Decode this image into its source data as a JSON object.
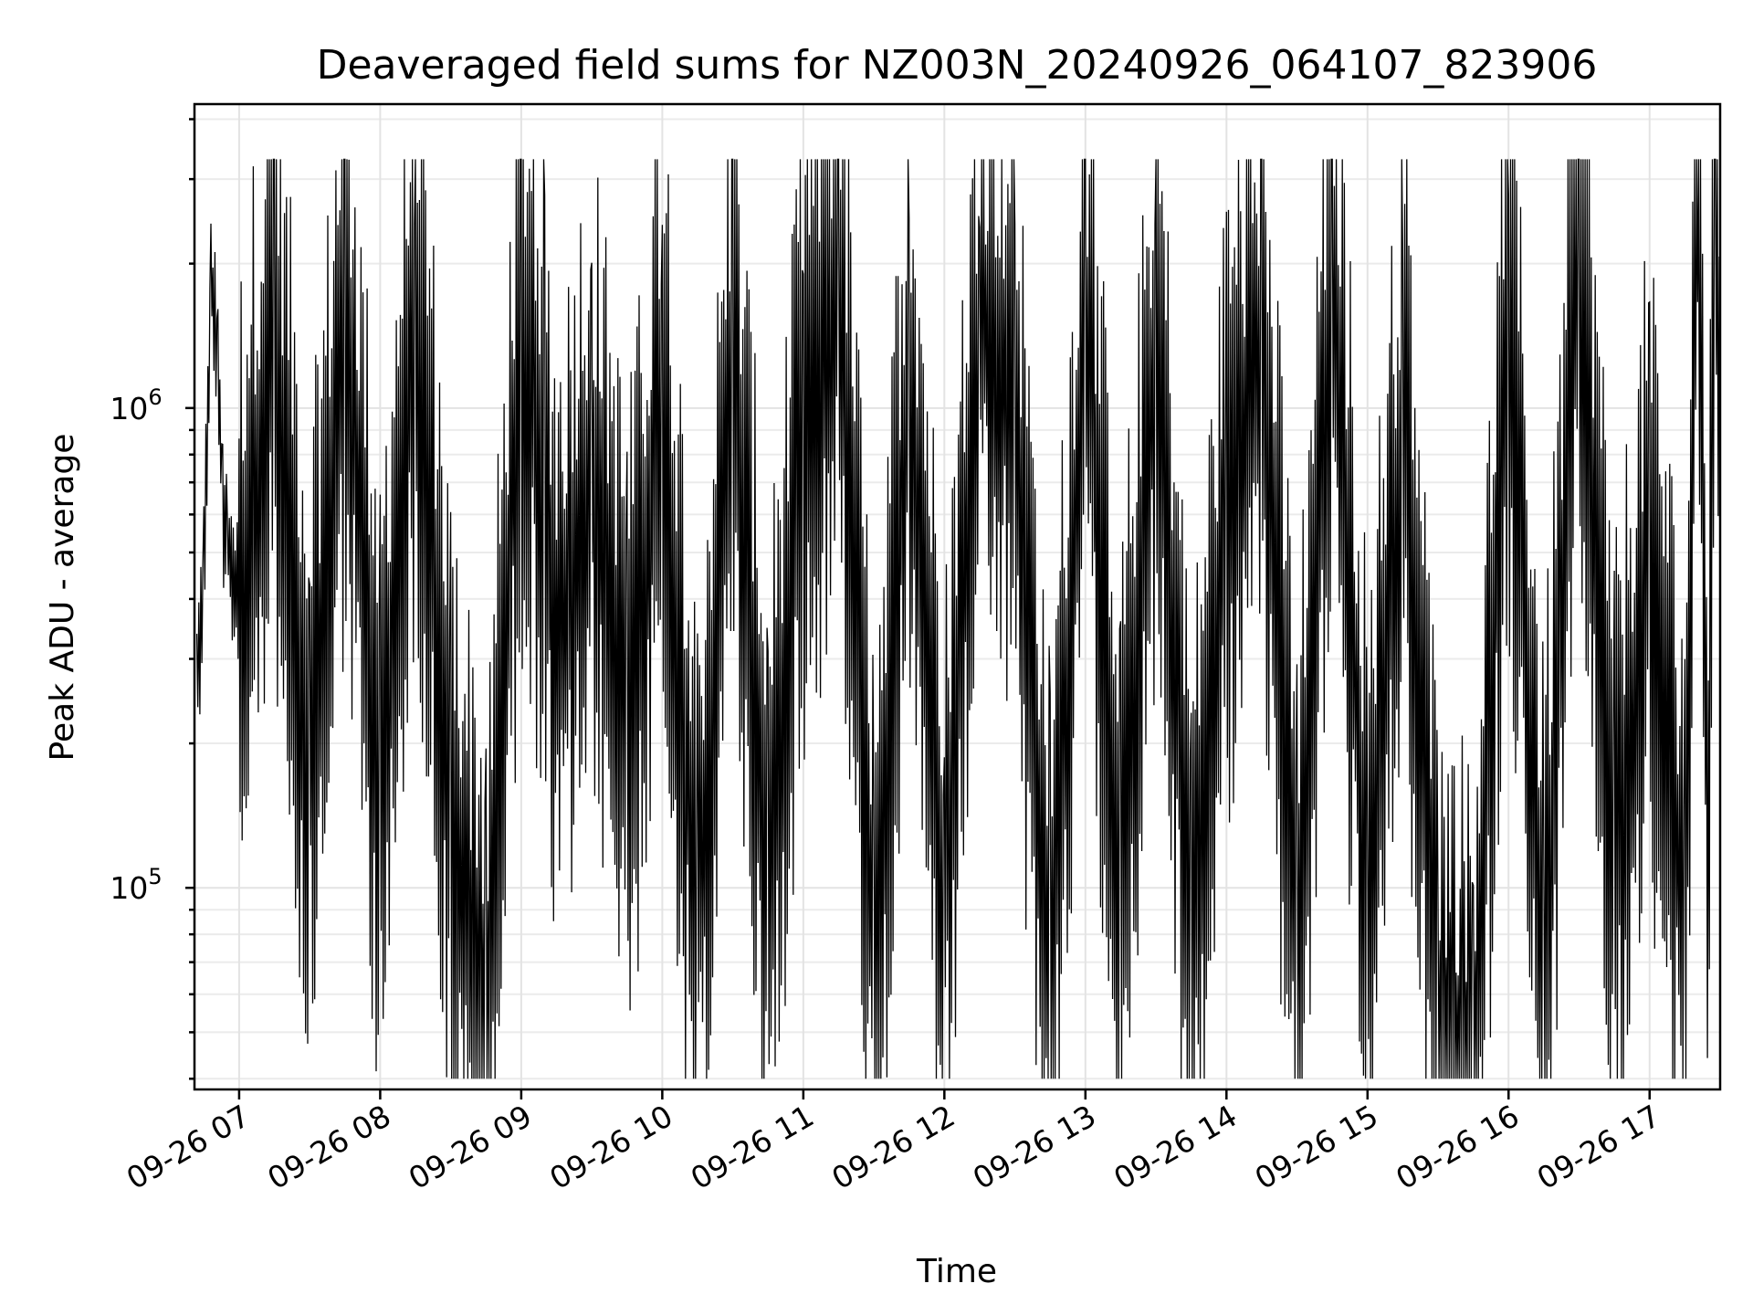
{
  "chart_data": {
    "type": "line",
    "title": "Deaveraged field sums for NZ003N_20240926_064107_823906",
    "xlabel": "Time",
    "ylabel": "Peak ADU - average",
    "yscale": "log",
    "ylim": [
      38000,
      4300000
    ],
    "xlim": [
      "2024-09-26 06:41",
      "2024-09-26 17:30"
    ],
    "grid": "on (major and minor)",
    "line_color": "#000000",
    "x_ticks": [
      "09-26 07",
      "09-26 08",
      "09-26 09",
      "09-26 10",
      "09-26 11",
      "09-26 12",
      "09-26 13",
      "09-26 14",
      "09-26 15",
      "09-26 16",
      "09-26 17"
    ],
    "y_ticks": [
      {
        "value": 100000,
        "base": "10",
        "exp": "5"
      },
      {
        "value": 1000000,
        "base": "10",
        "exp": "6"
      }
    ],
    "series": [
      {
        "points": [
          [
            "2024-09-26 06:42",
            260000
          ],
          [
            "2024-09-26 06:45",
            450000
          ],
          [
            "2024-09-26 06:48",
            1900000
          ],
          [
            "2024-09-26 06:51",
            1300000
          ],
          [
            "2024-09-26 06:53",
            600000
          ],
          [
            "2024-09-26 06:55",
            520000
          ],
          [
            "2024-09-26 07:00",
            400000
          ],
          [
            "2024-09-26 07:15",
            1400000
          ],
          [
            "2024-09-26 07:30",
            170000
          ],
          [
            "2024-09-26 07:45",
            1600000
          ],
          [
            "2024-09-26 08:00",
            160000
          ],
          [
            "2024-09-26 08:15",
            1700000
          ],
          [
            "2024-09-26 08:30",
            140000
          ],
          [
            "2024-09-26 08:45",
            50000
          ],
          [
            "2024-09-26 09:00",
            1500000
          ],
          [
            "2024-09-26 09:10",
            700000
          ],
          [
            "2024-09-26 09:15",
            300000
          ],
          [
            "2024-09-26 09:30",
            800000
          ],
          [
            "2024-09-26 09:45",
            200000
          ],
          [
            "2024-09-26 10:00",
            1000000
          ],
          [
            "2024-09-26 10:15",
            80000
          ],
          [
            "2024-09-26 10:30",
            1200000
          ],
          [
            "2024-09-26 10:45",
            100000
          ],
          [
            "2024-09-26 11:00",
            900000
          ],
          [
            "2024-09-26 11:15",
            1800000
          ],
          [
            "2024-09-26 11:30",
            70000
          ],
          [
            "2024-09-26 11:45",
            1200000
          ],
          [
            "2024-09-26 12:00",
            90000
          ],
          [
            "2024-09-26 12:15",
            1600000
          ],
          [
            "2024-09-26 12:30",
            1000000
          ],
          [
            "2024-09-26 12:45",
            60000
          ],
          [
            "2024-09-26 13:00",
            1500000
          ],
          [
            "2024-09-26 13:15",
            100000
          ],
          [
            "2024-09-26 13:30",
            1400000
          ],
          [
            "2024-09-26 13:45",
            70000
          ],
          [
            "2024-09-26 14:00",
            600000
          ],
          [
            "2024-09-26 14:15",
            1200000
          ],
          [
            "2024-09-26 14:30",
            80000
          ],
          [
            "2024-09-26 14:45",
            2100000
          ],
          [
            "2024-09-26 15:00",
            90000
          ],
          [
            "2024-09-26 15:15",
            1000000
          ],
          [
            "2024-09-26 15:30",
            50000
          ],
          [
            "2024-09-26 15:45",
            40000
          ],
          [
            "2024-09-26 16:00",
            1700000
          ],
          [
            "2024-09-26 16:15",
            60000
          ],
          [
            "2024-09-26 16:30",
            2200000
          ],
          [
            "2024-09-26 16:45",
            100000
          ],
          [
            "2024-09-26 17:00",
            500000
          ],
          [
            "2024-09-26 17:15",
            80000
          ],
          [
            "2024-09-26 17:20",
            3200000
          ],
          [
            "2024-09-26 17:25",
            130000
          ],
          [
            "2024-09-26 17:28",
            2800000
          ],
          [
            "2024-09-26 17:30",
            1000000
          ]
        ]
      }
    ]
  }
}
